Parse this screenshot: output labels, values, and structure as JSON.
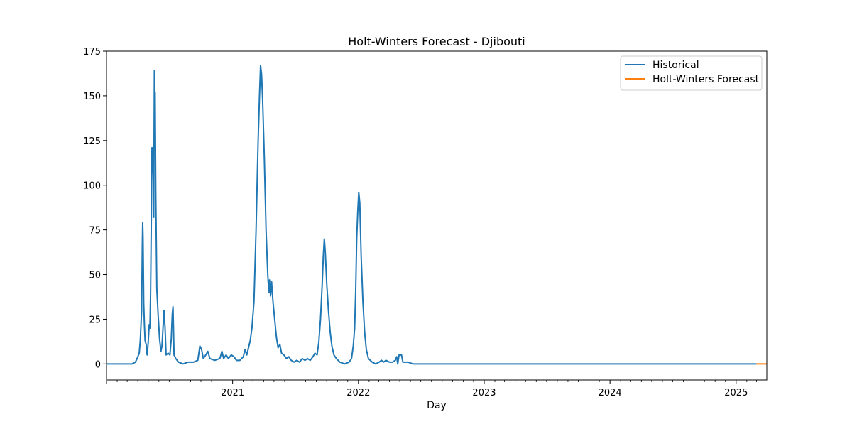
{
  "chart_data": {
    "type": "line",
    "title": "Holt-Winters Forecast - Djibouti",
    "xlabel": "Day",
    "ylabel": "",
    "xlim": [
      "2020-01-01",
      "2025-03-31"
    ],
    "ylim": [
      -9,
      175
    ],
    "yticks": [
      0,
      25,
      50,
      75,
      100,
      125,
      150,
      175
    ],
    "xticks": [
      {
        "date": "2021-01-01",
        "label": "2021"
      },
      {
        "date": "2022-01-01",
        "label": "2022"
      },
      {
        "date": "2023-01-01",
        "label": "2023"
      },
      {
        "date": "2024-01-01",
        "label": "2024"
      },
      {
        "date": "2025-01-01",
        "label": "2025"
      }
    ],
    "grid": false,
    "legend_position": "upper right",
    "series": [
      {
        "name": "Historical",
        "color": "#1f77b4",
        "points": [
          [
            "2020-01-01",
            0
          ],
          [
            "2020-03-15",
            0
          ],
          [
            "2020-03-25",
            1
          ],
          [
            "2020-04-01",
            4
          ],
          [
            "2020-04-05",
            6
          ],
          [
            "2020-04-08",
            13
          ],
          [
            "2020-04-12",
            30
          ],
          [
            "2020-04-14",
            66
          ],
          [
            "2020-04-15",
            79
          ],
          [
            "2020-04-16",
            71
          ],
          [
            "2020-04-18",
            34
          ],
          [
            "2020-04-20",
            22
          ],
          [
            "2020-04-22",
            13
          ],
          [
            "2020-04-25",
            11
          ],
          [
            "2020-04-28",
            5
          ],
          [
            "2020-05-01",
            12
          ],
          [
            "2020-05-04",
            22
          ],
          [
            "2020-05-06",
            20
          ],
          [
            "2020-05-08",
            40
          ],
          [
            "2020-05-10",
            80
          ],
          [
            "2020-05-12",
            121
          ],
          [
            "2020-05-13",
            107
          ],
          [
            "2020-05-15",
            119
          ],
          [
            "2020-05-17",
            82
          ],
          [
            "2020-05-19",
            164
          ],
          [
            "2020-05-20",
            145
          ],
          [
            "2020-05-21",
            152
          ],
          [
            "2020-05-23",
            95
          ],
          [
            "2020-05-26",
            42
          ],
          [
            "2020-05-30",
            27
          ],
          [
            "2020-06-03",
            14
          ],
          [
            "2020-06-07",
            7
          ],
          [
            "2020-06-10",
            10
          ],
          [
            "2020-06-13",
            20
          ],
          [
            "2020-06-16",
            30
          ],
          [
            "2020-06-19",
            20
          ],
          [
            "2020-06-22",
            5
          ],
          [
            "2020-06-28",
            6
          ],
          [
            "2020-07-03",
            5
          ],
          [
            "2020-07-07",
            14
          ],
          [
            "2020-07-10",
            28
          ],
          [
            "2020-07-12",
            32
          ],
          [
            "2020-07-15",
            5
          ],
          [
            "2020-07-20",
            3
          ],
          [
            "2020-07-28",
            1
          ],
          [
            "2020-08-10",
            0
          ],
          [
            "2020-08-25",
            1
          ],
          [
            "2020-09-10",
            1
          ],
          [
            "2020-09-22",
            2
          ],
          [
            "2020-09-28",
            10
          ],
          [
            "2020-10-03",
            8
          ],
          [
            "2020-10-08",
            3
          ],
          [
            "2020-10-15",
            5
          ],
          [
            "2020-10-21",
            7
          ],
          [
            "2020-10-27",
            3
          ],
          [
            "2020-11-10",
            2
          ],
          [
            "2020-11-25",
            3
          ],
          [
            "2020-12-01",
            7
          ],
          [
            "2020-12-06",
            3
          ],
          [
            "2020-12-13",
            5
          ],
          [
            "2020-12-20",
            3
          ],
          [
            "2020-12-28",
            5
          ],
          [
            "2021-01-05",
            4
          ],
          [
            "2021-01-12",
            2
          ],
          [
            "2021-01-22",
            2
          ],
          [
            "2021-02-01",
            4
          ],
          [
            "2021-02-06",
            8
          ],
          [
            "2021-02-11",
            5
          ],
          [
            "2021-02-16",
            9
          ],
          [
            "2021-02-21",
            13
          ],
          [
            "2021-02-26",
            20
          ],
          [
            "2021-03-04",
            35
          ],
          [
            "2021-03-10",
            75
          ],
          [
            "2021-03-16",
            125
          ],
          [
            "2021-03-20",
            150
          ],
          [
            "2021-03-23",
            167
          ],
          [
            "2021-03-26",
            162
          ],
          [
            "2021-03-29",
            148
          ],
          [
            "2021-04-03",
            115
          ],
          [
            "2021-04-08",
            75
          ],
          [
            "2021-04-13",
            50
          ],
          [
            "2021-04-16",
            40
          ],
          [
            "2021-04-18",
            47
          ],
          [
            "2021-04-21",
            38
          ],
          [
            "2021-04-24",
            46
          ],
          [
            "2021-04-28",
            35
          ],
          [
            "2021-05-03",
            25
          ],
          [
            "2021-05-08",
            15
          ],
          [
            "2021-05-13",
            9
          ],
          [
            "2021-05-18",
            11
          ],
          [
            "2021-05-23",
            6
          ],
          [
            "2021-05-30",
            5
          ],
          [
            "2021-06-06",
            3
          ],
          [
            "2021-06-13",
            4
          ],
          [
            "2021-06-20",
            2
          ],
          [
            "2021-06-28",
            1
          ],
          [
            "2021-07-06",
            2
          ],
          [
            "2021-07-14",
            1
          ],
          [
            "2021-07-22",
            3
          ],
          [
            "2021-07-30",
            2
          ],
          [
            "2021-08-06",
            3
          ],
          [
            "2021-08-14",
            2
          ],
          [
            "2021-08-22",
            4
          ],
          [
            "2021-08-28",
            6
          ],
          [
            "2021-09-03",
            5
          ],
          [
            "2021-09-08",
            12
          ],
          [
            "2021-09-13",
            25
          ],
          [
            "2021-09-18",
            45
          ],
          [
            "2021-09-21",
            60
          ],
          [
            "2021-09-24",
            70
          ],
          [
            "2021-09-27",
            62
          ],
          [
            "2021-10-01",
            45
          ],
          [
            "2021-10-06",
            30
          ],
          [
            "2021-10-11",
            18
          ],
          [
            "2021-10-16",
            10
          ],
          [
            "2021-10-22",
            5
          ],
          [
            "2021-10-29",
            3
          ],
          [
            "2021-11-08",
            1
          ],
          [
            "2021-11-22",
            0
          ],
          [
            "2021-12-05",
            1
          ],
          [
            "2021-12-12",
            3
          ],
          [
            "2021-12-17",
            10
          ],
          [
            "2021-12-21",
            20
          ],
          [
            "2021-12-24",
            40
          ],
          [
            "2021-12-27",
            70
          ],
          [
            "2021-12-30",
            85
          ],
          [
            "2022-01-02",
            96
          ],
          [
            "2022-01-05",
            90
          ],
          [
            "2022-01-09",
            60
          ],
          [
            "2022-01-14",
            35
          ],
          [
            "2022-01-19",
            18
          ],
          [
            "2022-01-24",
            8
          ],
          [
            "2022-01-30",
            3
          ],
          [
            "2022-02-10",
            1
          ],
          [
            "2022-02-20",
            0
          ],
          [
            "2022-03-02",
            1
          ],
          [
            "2022-03-09",
            2
          ],
          [
            "2022-03-15",
            1
          ],
          [
            "2022-03-22",
            2
          ],
          [
            "2022-04-01",
            1
          ],
          [
            "2022-04-10",
            1
          ],
          [
            "2022-04-18",
            2
          ],
          [
            "2022-04-22",
            4
          ],
          [
            "2022-04-25",
            0
          ],
          [
            "2022-04-29",
            5
          ],
          [
            "2022-05-06",
            5
          ],
          [
            "2022-05-10",
            1
          ],
          [
            "2022-05-25",
            1
          ],
          [
            "2022-06-08",
            0
          ],
          [
            "2025-03-01",
            0
          ]
        ]
      },
      {
        "name": "Holt-Winters Forecast",
        "color": "#ff7f0e",
        "points": [
          [
            "2025-03-01",
            0
          ],
          [
            "2025-03-31",
            0
          ]
        ]
      }
    ]
  }
}
